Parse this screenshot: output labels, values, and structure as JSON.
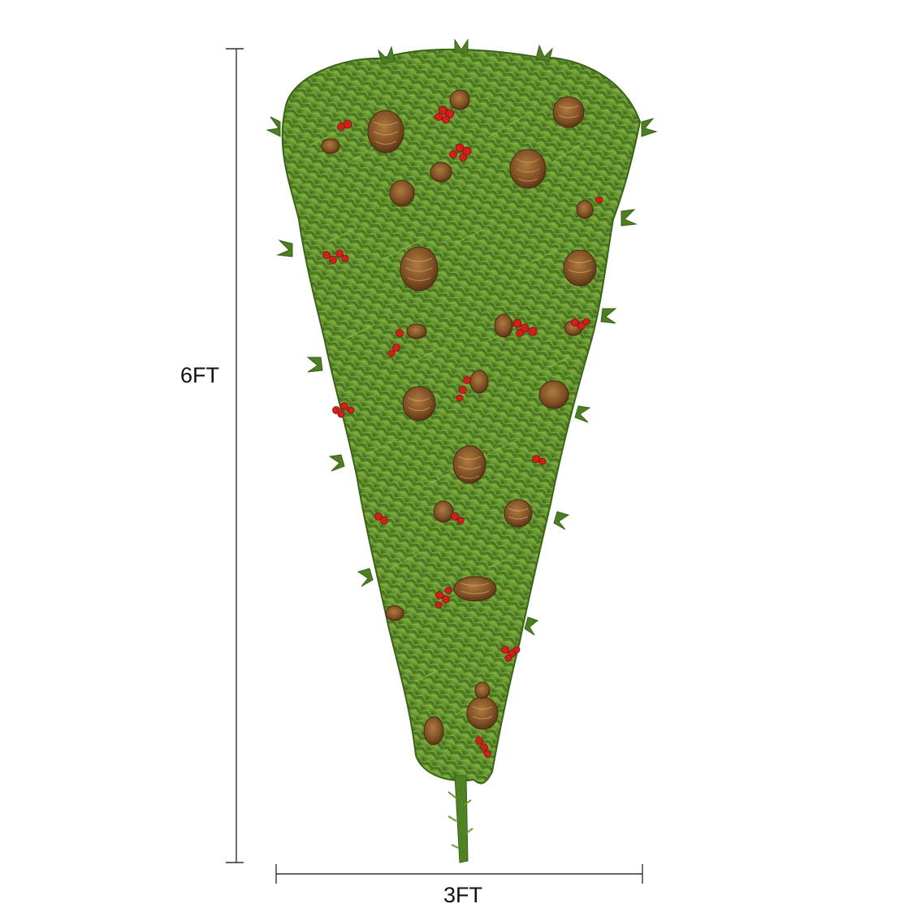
{
  "dimensions": {
    "height_label": "6FT",
    "width_label": "3FT"
  },
  "product": {
    "subject": "upside-down-christmas-tree",
    "decorations": [
      "pinecone",
      "red-berry-cluster"
    ]
  },
  "colors": {
    "background": "#ffffff",
    "dimension_line": "#333333",
    "foliage_dark": "#3f6b1e",
    "foliage_mid": "#5f8f2a",
    "foliage_light": "#8fb84a",
    "pinecone": "#8a5a2b",
    "berry": "#d0201c"
  }
}
